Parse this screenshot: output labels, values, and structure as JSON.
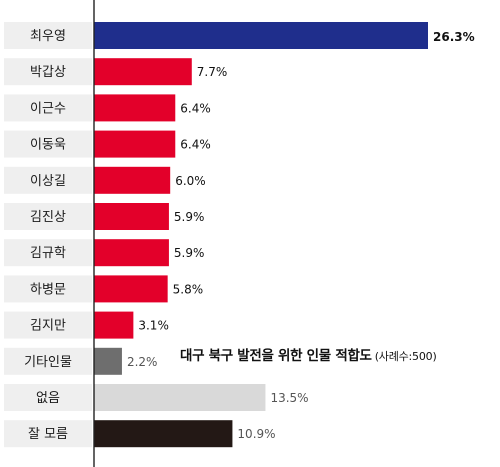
{
  "chart_data": {
    "type": "bar",
    "orientation": "horizontal",
    "title": "대구 북구 발전을 위한 인물 적합도",
    "subtitle": "(사례수:500)",
    "categories": [
      "최우영",
      "박갑상",
      "이근수",
      "이동욱",
      "이상길",
      "김진상",
      "김규학",
      "하병문",
      "김지만",
      "기타인물",
      "없음",
      "잘 모름"
    ],
    "values": [
      26.3,
      7.7,
      6.4,
      6.4,
      6.0,
      5.9,
      5.9,
      5.8,
      3.1,
      2.2,
      13.5,
      10.9
    ],
    "value_labels": [
      "26.3%",
      "7.7%",
      "6.4%",
      "6.4%",
      "6.0%",
      "5.9%",
      "5.9%",
      "5.8%",
      "3.1%",
      "2.2%",
      "13.5%",
      "10.9%"
    ],
    "bar_colors": [
      "#1f2e8c",
      "#e3002a",
      "#e3002a",
      "#e3002a",
      "#e3002a",
      "#e3002a",
      "#e3002a",
      "#e3002a",
      "#e3002a",
      "#6e6e6e",
      "#d9d9d9",
      "#231815"
    ],
    "value_colors": [
      "#111111",
      "#111111",
      "#111111",
      "#111111",
      "#111111",
      "#111111",
      "#111111",
      "#111111",
      "#111111",
      "#555555",
      "#555555",
      "#555555"
    ],
    "label_background": "#efefef",
    "axis_color": "#222222",
    "xlim": [
      0,
      26.3
    ],
    "grid": false,
    "legend": "none"
  }
}
